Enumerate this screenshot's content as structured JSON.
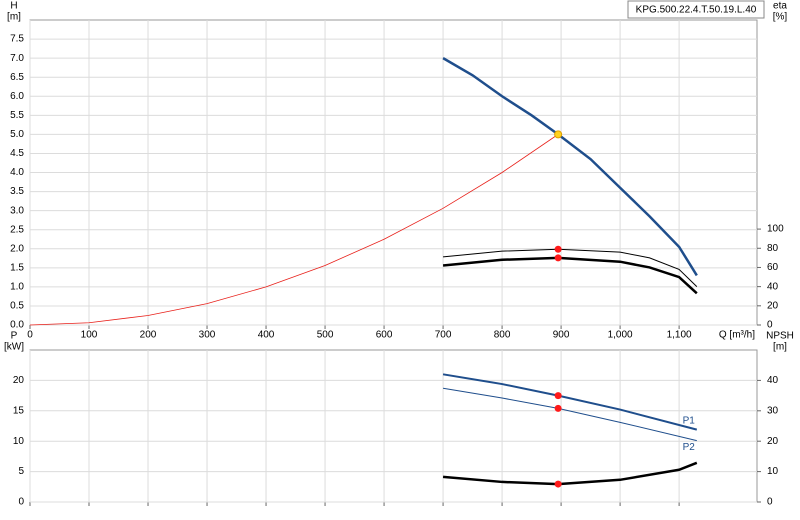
{
  "chart_data": [
    {
      "type": "line",
      "title": "KPG.500.22.4.T.50.19.L.40",
      "ylabel": "H",
      "yunit": "[m]",
      "y2label": "eta",
      "y2unit": "[%]",
      "xlabel": "Q [m³/h]",
      "xlim": [
        0,
        1232
      ],
      "ylim": [
        0,
        8
      ],
      "y2lim": [
        0,
        318
      ],
      "grid": true,
      "show_xtick_labels": true,
      "xticks": [
        0,
        100,
        200,
        300,
        400,
        500,
        600,
        700,
        800,
        900,
        {
          "value": 1000,
          "label": "1,000"
        },
        {
          "value": 1100,
          "label": "1,100"
        }
      ],
      "yticks": [
        {
          "value": 0,
          "label": "0.0"
        },
        0.5,
        {
          "value": 1,
          "label": "1.0"
        },
        1.5,
        {
          "value": 2,
          "label": "2.0"
        },
        2.5,
        {
          "value": 3,
          "label": "3.0"
        },
        3.5,
        {
          "value": 4,
          "label": "4.0"
        },
        4.5,
        {
          "value": 5,
          "label": "5.0"
        },
        5.5,
        {
          "value": 6,
          "label": "6.0"
        },
        6.5,
        {
          "value": 7,
          "label": "7.0"
        },
        7.5
      ],
      "y2ticks": [
        0,
        20,
        40,
        60,
        80,
        100
      ],
      "series": [
        {
          "color": "#1f4e8c",
          "line_width": 2.5,
          "x": [
            700,
            750,
            800,
            850,
            895,
            950,
            1000,
            1050,
            1100,
            1130
          ],
          "values": [
            7.0,
            6.55,
            6.0,
            5.5,
            5.0,
            4.35,
            3.6,
            2.85,
            2.05,
            1.3
          ]
        },
        {
          "color": "#e8201a",
          "line_width": 0.8,
          "x": [
            0,
            100,
            200,
            300,
            400,
            500,
            600,
            700,
            800,
            895
          ],
          "values": [
            0,
            0.06,
            0.25,
            0.56,
            1.0,
            1.56,
            2.25,
            3.06,
            4.0,
            5.0
          ]
        },
        {
          "color": "#000000",
          "line_width": 1,
          "axis": "y2",
          "x": [
            700,
            800,
            895,
            1000,
            1050,
            1100,
            1130
          ],
          "values": [
            71,
            77,
            79,
            76,
            70,
            58,
            40
          ]
        },
        {
          "color": "#000000",
          "line_width": 2.5,
          "axis": "y2",
          "x": [
            700,
            800,
            895,
            1000,
            1050,
            1100,
            1130
          ],
          "values": [
            62,
            68,
            70,
            66,
            60,
            50,
            33
          ]
        }
      ],
      "markers": [
        {
          "x": 895,
          "y": 5.0,
          "color": "#ffd21f"
        },
        {
          "x": 895,
          "y": 79,
          "color": "#ff1a1a",
          "axis": "y2"
        },
        {
          "x": 895,
          "y": 70,
          "color": "#ff1a1a",
          "axis": "y2"
        }
      ]
    },
    {
      "type": "line",
      "ylabel": "P",
      "yunit": "[kW]",
      "y2label": "NPSH",
      "y2unit": "[m]",
      "xlim": [
        0,
        1232
      ],
      "ylim": [
        0,
        25
      ],
      "y2lim": [
        0,
        50
      ],
      "grid": true,
      "show_xtick_labels": false,
      "xticks": [
        0,
        100,
        200,
        300,
        400,
        500,
        600,
        700,
        800,
        900,
        1000,
        1100
      ],
      "yticks": [
        0,
        5,
        10,
        15,
        20
      ],
      "y2ticks": [
        0,
        10,
        20,
        30,
        40
      ],
      "series": [
        {
          "name": "P1",
          "color": "#1f4e8c",
          "line_width": 2,
          "x": [
            700,
            800,
            895,
            1000,
            1130
          ],
          "values": [
            21.0,
            19.4,
            17.5,
            15.2,
            11.9
          ]
        },
        {
          "name": "P2",
          "color": "#1f4e8c",
          "line_width": 1,
          "x": [
            700,
            800,
            895,
            1000,
            1130
          ],
          "values": [
            18.7,
            17.1,
            15.4,
            13.1,
            10.1
          ]
        },
        {
          "color": "#000000",
          "line_width": 2.5,
          "axis": "y2",
          "x": [
            700,
            800,
            895,
            1000,
            1100,
            1130
          ],
          "values": [
            8.25,
            6.6,
            5.9,
            7.3,
            10.6,
            12.9
          ]
        }
      ],
      "markers": [
        {
          "x": 895,
          "y": 17.5,
          "color": "#ff1a1a"
        },
        {
          "x": 895,
          "y": 15.4,
          "color": "#ff1a1a"
        },
        {
          "x": 895,
          "y": 5.9,
          "color": "#ff1a1a",
          "axis": "y2"
        }
      ]
    }
  ]
}
